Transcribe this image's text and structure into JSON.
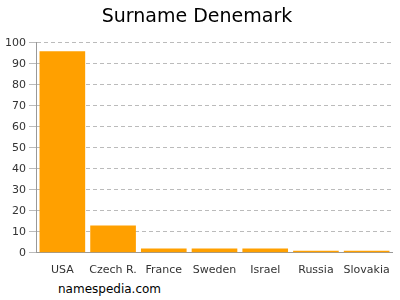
{
  "chart_data": {
    "type": "bar",
    "title": "Surname Denemark",
    "categories": [
      "USA",
      "Czech R.",
      "France",
      "Sweden",
      "Israel",
      "Russia",
      "Slovakia"
    ],
    "values": [
      96,
      13,
      2,
      2,
      2,
      1,
      1
    ],
    "color": "#ffa000",
    "ylim": [
      0,
      100
    ],
    "yticks": [
      0,
      10,
      20,
      30,
      40,
      50,
      60,
      70,
      80,
      90,
      100
    ],
    "grid": true,
    "annotations": [
      "namespedia.com"
    ]
  }
}
